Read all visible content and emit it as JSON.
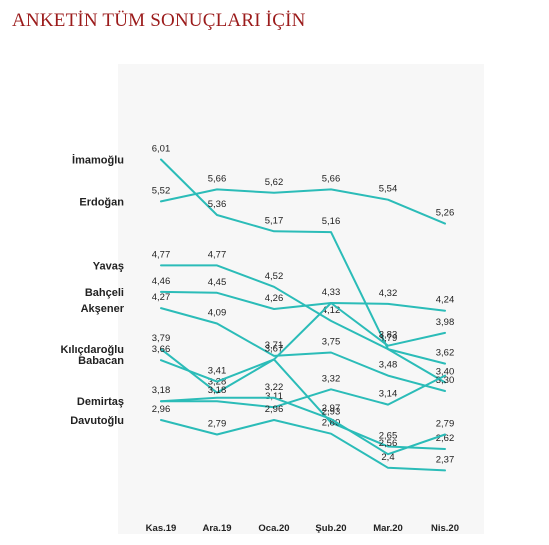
{
  "header": {
    "title": "ANKETİN TÜM SONUÇLARI İÇİN"
  },
  "colors": {
    "title": "#9b1b1b",
    "line": "#2bbcb8",
    "panel": "#f7f7f7",
    "text": "#222222"
  },
  "chart_data": {
    "type": "line",
    "title": "",
    "xlabel": "",
    "ylabel": "",
    "grid": false,
    "legend": "series labels at left of lines",
    "categories": [
      "Kas.19",
      "Ara.19",
      "Oca.20",
      "Şub.20",
      "Mar.20",
      "Nis.20"
    ],
    "ylim": [
      2.2,
      6.3
    ],
    "series": [
      {
        "name": "İmamoğlu",
        "values": [
          6.01,
          5.36,
          5.17,
          5.16,
          3.79,
          3.4
        ],
        "labels": [
          "6,01",
          "5,36",
          "5,17",
          "5,16",
          "3,79",
          "3,40"
        ]
      },
      {
        "name": "Erdoğan",
        "values": [
          5.52,
          5.66,
          5.62,
          5.66,
          5.54,
          5.26
        ],
        "labels": [
          "5,52",
          "5,66",
          "5,62",
          "5,66",
          "5,54",
          "5,26"
        ]
      },
      {
        "name": "Yavaş",
        "values": [
          4.77,
          4.77,
          4.52,
          4.12,
          3.79,
          3.62
        ],
        "labels": [
          "4,77",
          "4,77",
          "4,52",
          "4,12",
          "",
          "3,62"
        ]
      },
      {
        "name": "Bahçeli",
        "values": [
          4.46,
          4.45,
          4.26,
          4.33,
          3.83,
          3.98
        ],
        "labels": [
          "4,46",
          "4,45",
          "4,26",
          "4,33",
          "3,83",
          "3,98"
        ]
      },
      {
        "name": "Akşener",
        "values": [
          4.27,
          4.09,
          3.71,
          3.75,
          3.48,
          3.3
        ],
        "labels": [
          "4,27",
          "4,09",
          "3,71",
          "3,75",
          "3,48",
          "3,30"
        ]
      },
      {
        "name": "Kılıçdaroğlu",
        "values": [
          3.79,
          3.28,
          3.67,
          4.33,
          4.32,
          4.24
        ],
        "labels": [
          "3,79",
          "3,28",
          "3,67",
          "",
          "4,32",
          "4,24"
        ]
      },
      {
        "name": "Babacan",
        "values": [
          3.66,
          3.41,
          3.67,
          2.93,
          2.65,
          2.62
        ],
        "labels": [
          "3,66",
          "3,41",
          "",
          "2,93",
          "2,65",
          "2,62"
        ]
      },
      {
        "name": "Demirtaş",
        "values": [
          3.18,
          3.18,
          3.11,
          3.32,
          3.14,
          3.48
        ],
        "labels": [
          "3,18",
          "3,18",
          "3,11",
          "3,32",
          "3,14",
          ""
        ]
      },
      {
        "name": "Davutoğlu",
        "values": [
          2.96,
          2.79,
          2.96,
          2.8,
          2.4,
          2.37
        ],
        "labels": [
          "2,96",
          "2,79",
          "2,96",
          "2,80",
          "2,4",
          "2,37"
        ]
      },
      {
        "name": "",
        "values": [
          3.18,
          3.22,
          3.22,
          2.97,
          2.56,
          2.79
        ],
        "labels": [
          "",
          "",
          "3,22",
          "2,97",
          "2,56",
          "2,79"
        ]
      }
    ]
  }
}
